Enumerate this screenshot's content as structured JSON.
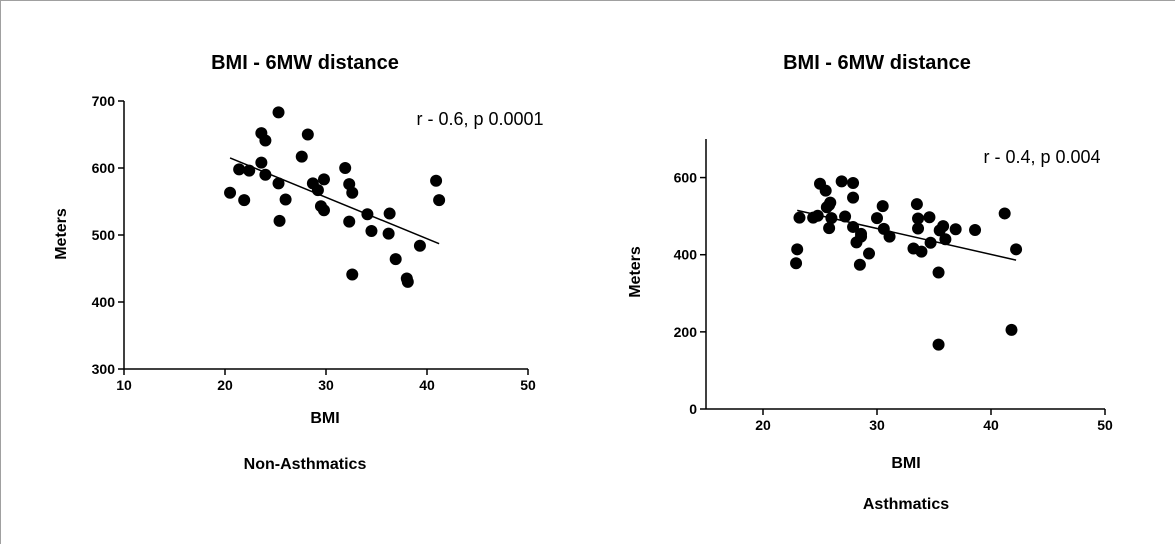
{
  "chart_data": [
    {
      "type": "scatter",
      "title": "BMI - 6MW distance",
      "xlabel": "BMI",
      "ylabel": "Meters",
      "group_label": "Non-Asthmatics",
      "annotation": "r - 0.6, p 0.0001",
      "xlim": [
        10,
        50
      ],
      "ylim": [
        300,
        700
      ],
      "xticks": [
        10,
        20,
        30,
        40,
        50
      ],
      "yticks": [
        300,
        400,
        500,
        600,
        700
      ],
      "grid": false,
      "trendline": {
        "x": [
          20.5,
          41.2
        ],
        "y": [
          615,
          487
        ]
      },
      "points": [
        {
          "x": 20.5,
          "y": 563
        },
        {
          "x": 21.4,
          "y": 598
        },
        {
          "x": 21.9,
          "y": 552
        },
        {
          "x": 22.4,
          "y": 596
        },
        {
          "x": 23.6,
          "y": 652
        },
        {
          "x": 23.6,
          "y": 608
        },
        {
          "x": 24.0,
          "y": 641
        },
        {
          "x": 24.0,
          "y": 590
        },
        {
          "x": 25.3,
          "y": 683
        },
        {
          "x": 25.3,
          "y": 577
        },
        {
          "x": 25.4,
          "y": 521
        },
        {
          "x": 26.0,
          "y": 553
        },
        {
          "x": 27.6,
          "y": 617
        },
        {
          "x": 28.2,
          "y": 650
        },
        {
          "x": 28.7,
          "y": 577
        },
        {
          "x": 29.2,
          "y": 567
        },
        {
          "x": 29.5,
          "y": 543
        },
        {
          "x": 29.8,
          "y": 537
        },
        {
          "x": 29.8,
          "y": 583
        },
        {
          "x": 31.9,
          "y": 600
        },
        {
          "x": 32.3,
          "y": 576
        },
        {
          "x": 32.3,
          "y": 520
        },
        {
          "x": 32.6,
          "y": 563
        },
        {
          "x": 32.6,
          "y": 441
        },
        {
          "x": 34.1,
          "y": 531
        },
        {
          "x": 34.5,
          "y": 506
        },
        {
          "x": 36.2,
          "y": 502
        },
        {
          "x": 36.3,
          "y": 532
        },
        {
          "x": 36.9,
          "y": 464
        },
        {
          "x": 38.0,
          "y": 435
        },
        {
          "x": 38.1,
          "y": 430
        },
        {
          "x": 39.3,
          "y": 484
        },
        {
          "x": 40.9,
          "y": 581
        },
        {
          "x": 41.2,
          "y": 552
        }
      ]
    },
    {
      "type": "scatter",
      "title": "BMI - 6MW distance",
      "xlabel": "BMI",
      "ylabel": "Meters",
      "group_label": "Asthmatics",
      "annotation": "r - 0.4, p 0.004",
      "xlim": [
        15,
        50
      ],
      "ylim": [
        0,
        700
      ],
      "xticks": [
        20,
        30,
        40,
        50
      ],
      "yticks": [
        0,
        200,
        400,
        600
      ],
      "grid": false,
      "trendline": {
        "x": [
          23.0,
          42.2
        ],
        "y": [
          515,
          386
        ]
      },
      "points": [
        {
          "x": 22.9,
          "y": 378
        },
        {
          "x": 23.0,
          "y": 414
        },
        {
          "x": 23.2,
          "y": 496
        },
        {
          "x": 24.4,
          "y": 496
        },
        {
          "x": 24.8,
          "y": 501
        },
        {
          "x": 25.0,
          "y": 584
        },
        {
          "x": 25.5,
          "y": 566
        },
        {
          "x": 25.6,
          "y": 523
        },
        {
          "x": 25.8,
          "y": 469
        },
        {
          "x": 25.8,
          "y": 529
        },
        {
          "x": 25.9,
          "y": 535
        },
        {
          "x": 26.0,
          "y": 495
        },
        {
          "x": 26.9,
          "y": 590
        },
        {
          "x": 27.2,
          "y": 499
        },
        {
          "x": 27.9,
          "y": 548
        },
        {
          "x": 27.9,
          "y": 586
        },
        {
          "x": 27.9,
          "y": 472
        },
        {
          "x": 28.2,
          "y": 432
        },
        {
          "x": 28.5,
          "y": 374
        },
        {
          "x": 28.6,
          "y": 447
        },
        {
          "x": 28.6,
          "y": 454
        },
        {
          "x": 29.3,
          "y": 403
        },
        {
          "x": 30.0,
          "y": 495
        },
        {
          "x": 30.5,
          "y": 526
        },
        {
          "x": 30.6,
          "y": 467
        },
        {
          "x": 31.1,
          "y": 447
        },
        {
          "x": 33.2,
          "y": 416
        },
        {
          "x": 33.5,
          "y": 531
        },
        {
          "x": 33.6,
          "y": 494
        },
        {
          "x": 33.6,
          "y": 468
        },
        {
          "x": 33.9,
          "y": 408
        },
        {
          "x": 34.6,
          "y": 497
        },
        {
          "x": 34.7,
          "y": 431
        },
        {
          "x": 35.4,
          "y": 354
        },
        {
          "x": 35.5,
          "y": 463
        },
        {
          "x": 35.8,
          "y": 474
        },
        {
          "x": 36.0,
          "y": 440
        },
        {
          "x": 36.9,
          "y": 466
        },
        {
          "x": 38.6,
          "y": 464
        },
        {
          "x": 41.2,
          "y": 507
        },
        {
          "x": 41.8,
          "y": 205
        },
        {
          "x": 42.2,
          "y": 414
        },
        {
          "x": 35.4,
          "y": 167
        }
      ]
    }
  ],
  "colors": {
    "marker": "#000000",
    "axis": "#000000",
    "frame": "#a0a0a0"
  }
}
